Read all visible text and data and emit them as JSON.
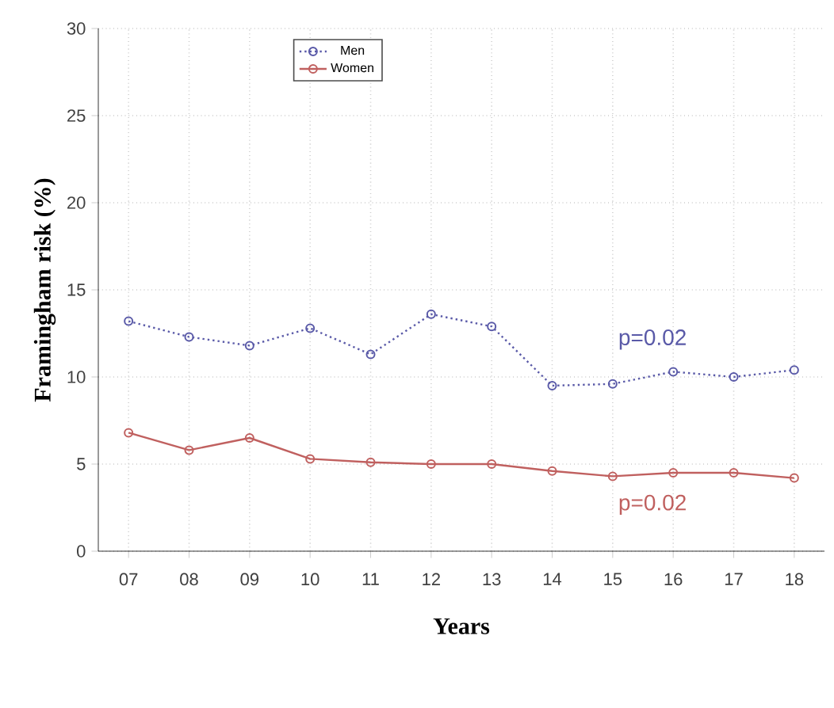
{
  "chart_data": {
    "type": "line",
    "xlabel": "Years",
    "ylabel": "Framingham  risk (%)",
    "categories": [
      "07",
      "08",
      "09",
      "10",
      "11",
      "12",
      "13",
      "14",
      "15",
      "16",
      "17",
      "18"
    ],
    "series": [
      {
        "name": "Men",
        "color": "#5a5aa8",
        "line_style": "dotted",
        "values": [
          13.2,
          12.3,
          11.8,
          12.8,
          11.3,
          13.6,
          12.9,
          9.5,
          9.6,
          10.3,
          10.0,
          10.4
        ]
      },
      {
        "name": "Women",
        "color": "#c0605f",
        "line_style": "solid",
        "values": [
          6.8,
          5.8,
          6.5,
          5.3,
          5.1,
          5.0,
          5.0,
          4.6,
          4.3,
          4.5,
          4.5,
          4.2
        ]
      }
    ],
    "annotations": [
      "p=0.02",
      "p=0.02"
    ],
    "ylim": [
      0,
      30
    ],
    "yticks": [
      0,
      5,
      10,
      15,
      20,
      25,
      30
    ],
    "grid": true,
    "legend": "top",
    "marker": "circle"
  }
}
